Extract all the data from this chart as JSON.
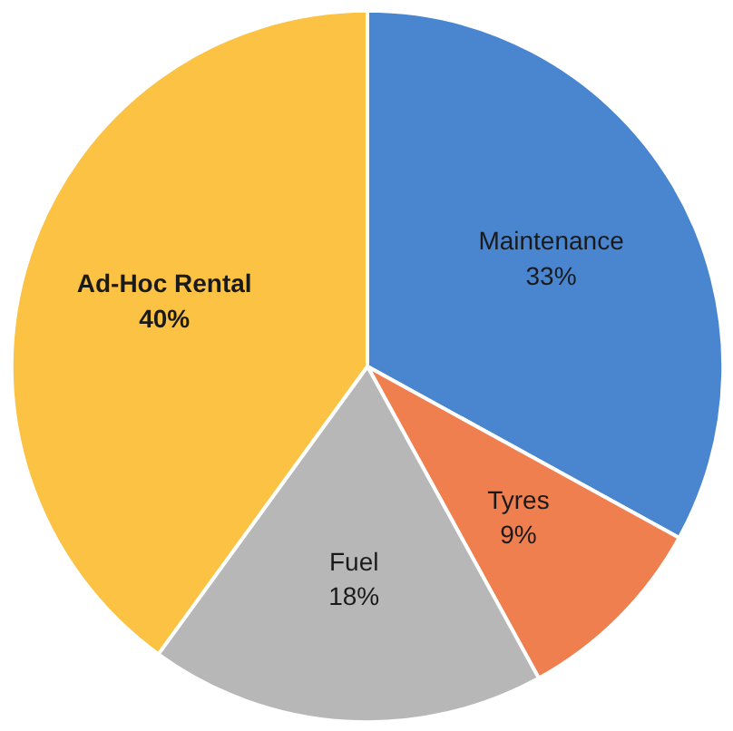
{
  "chart_data": {
    "type": "pie",
    "categories": [
      "Maintenance",
      "Tyres",
      "Fuel",
      "Ad-Hoc Rental"
    ],
    "values": [
      33,
      9,
      18,
      40
    ],
    "colors": [
      "#4a86cf",
      "#f07f50",
      "#b7b7b7",
      "#fcc243"
    ],
    "value_labels": [
      "33%",
      "9%",
      "18%",
      "40%"
    ],
    "legend": false
  }
}
